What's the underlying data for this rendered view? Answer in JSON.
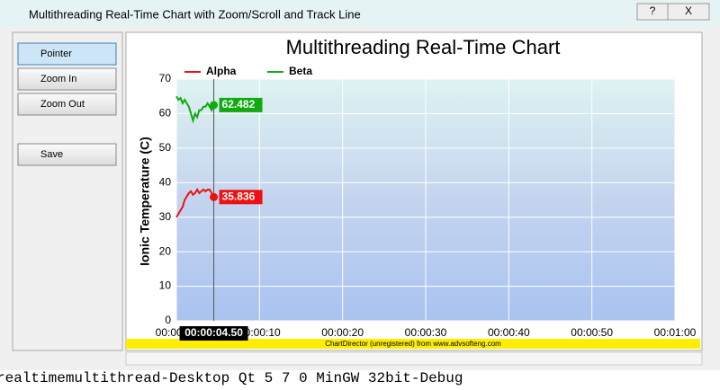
{
  "window": {
    "title": "Multithreading Real-Time Chart with Zoom/Scroll and Track Line",
    "help": "?",
    "close": "X"
  },
  "toolbar": {
    "buttons": [
      "Pointer",
      "Zoom In",
      "Zoom Out",
      "Save"
    ]
  },
  "footer": "ChartDirector (unregistered) from www.advsofteng.com",
  "background_text": "realtimemultithread-Desktop Qt 5 7 0 MinGW 32bit-Debug",
  "chart_data": {
    "type": "line",
    "title": "Multithreading Real-Time Chart",
    "y_label": "Ionic Temperature (C)",
    "x": [
      0,
      0.25,
      0.5,
      0.75,
      1,
      1.25,
      1.5,
      1.75,
      2,
      2.25,
      2.5,
      2.75,
      3,
      3.25,
      3.5,
      3.75,
      4,
      4.25,
      4.5
    ],
    "series": [
      {
        "name": "Alpha",
        "color": "#ee1111",
        "values": [
          30,
          31,
          32,
          33,
          35,
          36,
          37,
          37.5,
          36.5,
          37,
          38,
          37,
          37.5,
          38,
          37.5,
          38,
          38,
          37,
          35.836
        ]
      },
      {
        "name": "Beta",
        "color": "#11aa11",
        "values": [
          65,
          64,
          64.5,
          63,
          64,
          63,
          62,
          60,
          58,
          60,
          59,
          61,
          61,
          62,
          62,
          63,
          62,
          61,
          62.482
        ]
      }
    ],
    "xlim": [
      0,
      60
    ],
    "ylim": [
      0,
      70
    ],
    "xticks": [
      {
        "value": 0,
        "label": "00:00:00"
      },
      {
        "value": 10,
        "label": "00:00:10"
      },
      {
        "value": 20,
        "label": "00:00:20"
      },
      {
        "value": 30,
        "label": "00:00:30"
      },
      {
        "value": 40,
        "label": "00:00:40"
      },
      {
        "value": 50,
        "label": "00:00:50"
      },
      {
        "value": 60,
        "label": "00:01:00"
      }
    ],
    "yticks": [
      0,
      10,
      20,
      30,
      40,
      50,
      60,
      70
    ],
    "grid": true,
    "legend": "top",
    "track": {
      "value": 4.5,
      "label": "00:00:04.50"
    }
  }
}
